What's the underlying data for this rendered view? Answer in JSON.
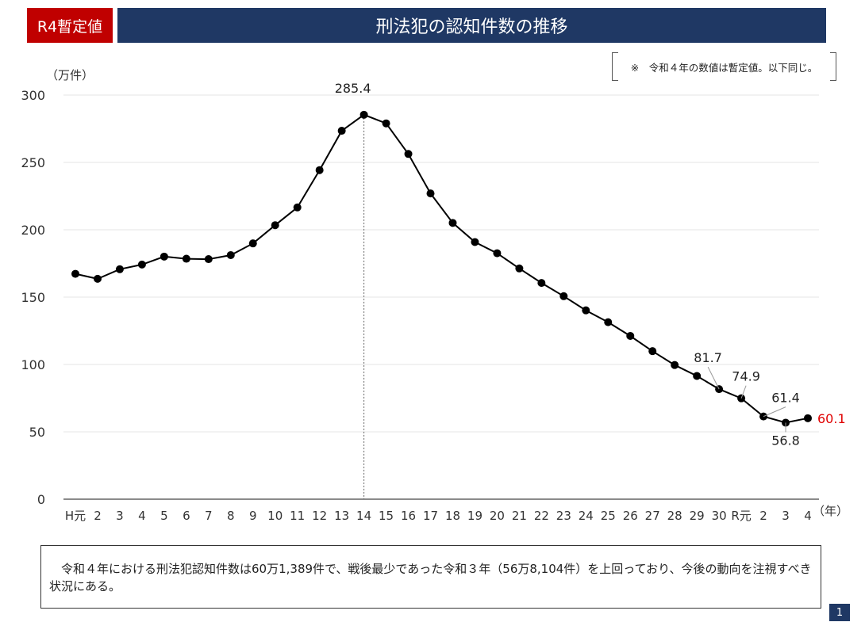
{
  "header": {
    "badge": "R4暫定値",
    "title": "刑法犯の認知件数の推移"
  },
  "note": "※　令和４年の数値は暫定値。以下同じ。",
  "chart_data": {
    "type": "line",
    "title": "刑法犯の認知件数の推移",
    "ylabel": "（万件）",
    "xlabel": "（年）",
    "ylim": [
      0,
      300
    ],
    "yticks": [
      "0",
      "50",
      "100",
      "150",
      "200",
      "250",
      "300"
    ],
    "categories": [
      "H元",
      "2",
      "3",
      "4",
      "5",
      "6",
      "7",
      "8",
      "9",
      "10",
      "11",
      "12",
      "13",
      "14",
      "15",
      "16",
      "17",
      "18",
      "19",
      "20",
      "21",
      "22",
      "23",
      "24",
      "25",
      "26",
      "27",
      "28",
      "29",
      "30",
      "R元",
      "2",
      "3",
      "4"
    ],
    "values": [
      167.3,
      163.6,
      170.7,
      174.2,
      180.1,
      178.5,
      178.2,
      181.2,
      189.9,
      203.4,
      216.6,
      244.3,
      273.5,
      285.4,
      279.0,
      256.3,
      227.0,
      205.1,
      190.9,
      182.6,
      171.3,
      160.5,
      150.7,
      140.2,
      131.4,
      121.2,
      109.9,
      99.6,
      91.5,
      81.7,
      74.9,
      61.4,
      56.8,
      60.1
    ],
    "annotations": [
      {
        "label": "285.4",
        "index": 13,
        "color": "#222222"
      },
      {
        "label": "81.7",
        "index": 29,
        "color": "#222222"
      },
      {
        "label": "74.9",
        "index": 30,
        "color": "#222222"
      },
      {
        "label": "61.4",
        "index": 31,
        "color": "#222222"
      },
      {
        "label": "56.8",
        "index": 32,
        "color": "#222222"
      },
      {
        "label": "60.1",
        "index": 33,
        "color": "#e00000"
      }
    ]
  },
  "summary": "　令和４年における刑法犯認知件数は60万1,389件で、戦後最少であった令和３年（56万8,104件）を上回っており、今後の動向を注視すべき状況にある。",
  "page_number": "1"
}
